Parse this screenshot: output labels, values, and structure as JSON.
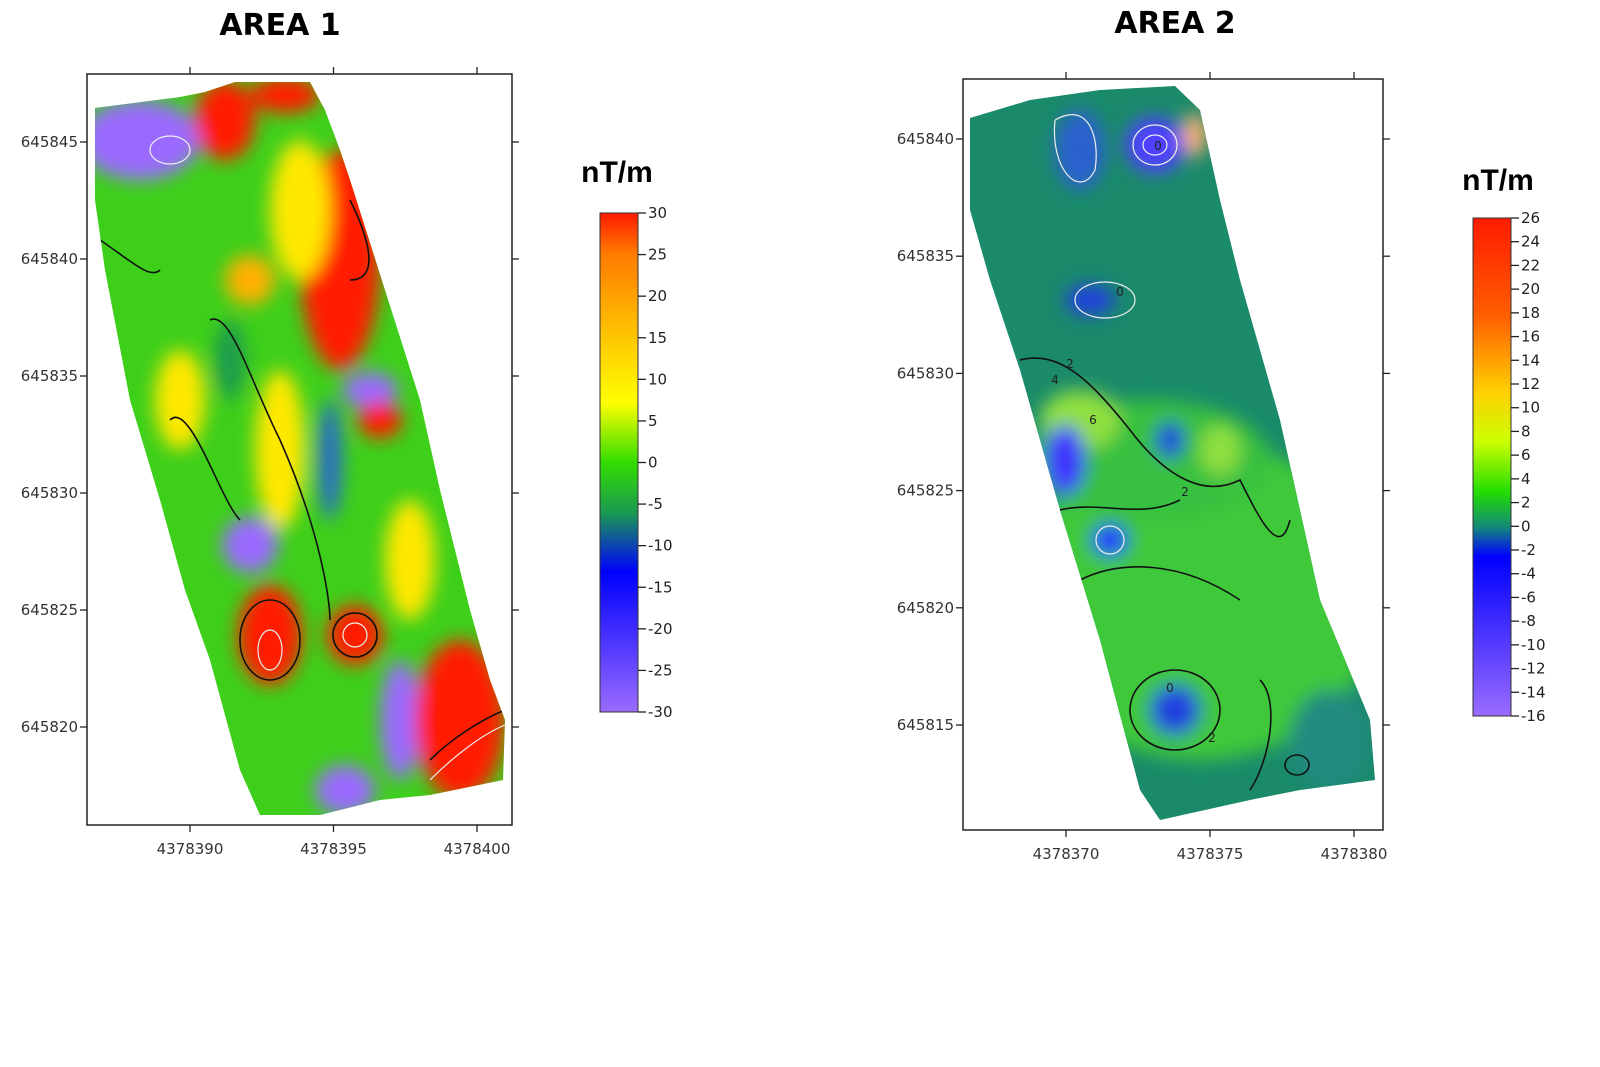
{
  "maps": [
    {
      "title": "AREA 1",
      "yticks": [
        645845,
        645840,
        645835,
        645830,
        645825,
        645820
      ],
      "xticks": [
        4378390,
        4378395,
        4378400
      ],
      "colorbar": {
        "unit": "nT/m",
        "ticks": [
          30,
          25,
          20,
          15,
          10,
          5,
          0,
          -5,
          -10,
          -15,
          -20,
          -25,
          -30
        ]
      }
    },
    {
      "title": "AREA 2",
      "yticks": [
        645840,
        645835,
        645830,
        645825,
        645820,
        645815
      ],
      "xticks": [
        4378370,
        4378375,
        4378380
      ],
      "colorbar": {
        "unit": "nT/m",
        "ticks": [
          26,
          24,
          22,
          20,
          18,
          16,
          14,
          12,
          10,
          8,
          6,
          4,
          2,
          0,
          -2,
          -4,
          -6,
          -8,
          -10,
          -12,
          -14,
          -16
        ]
      },
      "contour_labels": [
        0,
        0,
        4,
        6,
        2,
        2,
        0,
        2
      ]
    }
  ]
}
